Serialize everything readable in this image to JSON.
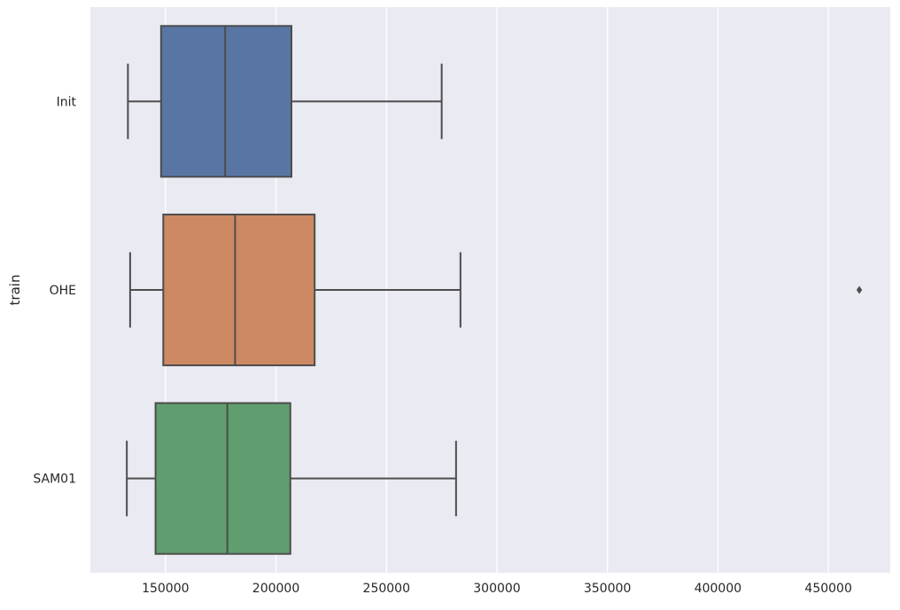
{
  "chart_data": {
    "type": "box",
    "orientation": "horizontal",
    "title": "",
    "xlabel": "",
    "ylabel": "train",
    "xlim": [
      116000,
      478000
    ],
    "x_ticks": [
      150000,
      200000,
      250000,
      300000,
      350000,
      400000,
      450000
    ],
    "grid": true,
    "categories": [
      "Init",
      "OHE",
      "SAM01"
    ],
    "series": [
      {
        "category": "Init",
        "color": "#5875a4",
        "whisker_low": 133000,
        "q1": 148000,
        "median": 177000,
        "q3": 207000,
        "whisker_high": 275000,
        "outliers": []
      },
      {
        "category": "OHE",
        "color": "#cc8963",
        "whisker_low": 134000,
        "q1": 149000,
        "median": 181500,
        "q3": 217500,
        "whisker_high": 283500,
        "outliers": [
          464000
        ]
      },
      {
        "category": "SAM01",
        "color": "#5f9e6e",
        "whisker_low": 132500,
        "q1": 145500,
        "median": 178000,
        "q3": 206500,
        "whisker_high": 281500,
        "outliers": []
      }
    ],
    "colors": {
      "background": "#eaeaf2",
      "grid": "#ffffff",
      "line": "#4d4d4d"
    }
  }
}
